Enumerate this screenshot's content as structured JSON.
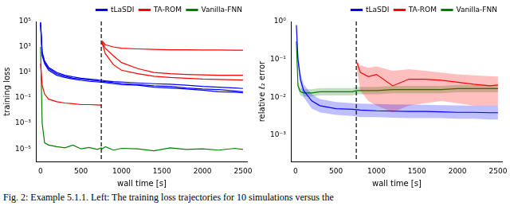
{
  "chart_data": [
    {
      "type": "line",
      "log": "y",
      "grid": false,
      "legend": "upper right",
      "x_label": "wall time [s]",
      "y_label": "training loss",
      "x": [
        0,
        20,
        50,
        100,
        200,
        300,
        400,
        500,
        600,
        700,
        750,
        760,
        800,
        900,
        1000,
        1200,
        1400,
        1600,
        1800,
        2000,
        2200,
        2400,
        2500
      ],
      "xlim": [
        -50,
        2550
      ],
      "xticks": [
        0,
        500,
        1000,
        1500,
        2000,
        2500
      ],
      "ylim": [
        1e-06,
        100000.0
      ],
      "yticks": [
        {
          "value": 1e-05,
          "label": "10⁻⁵"
        },
        {
          "value": 0.001,
          "label": "10⁻³"
        },
        {
          "value": 0.1,
          "label": "10⁻¹"
        },
        {
          "value": 10,
          "label": "10¹"
        },
        {
          "value": 1000,
          "label": "10³"
        },
        {
          "value": 100000.0,
          "label": "10⁵"
        }
      ],
      "vline": 750,
      "series": [
        {
          "name": "tLaSDI",
          "color": "#0000ff",
          "values": [
            80000.0,
            300,
            60,
            20,
            8,
            5,
            3.5,
            3,
            2.5,
            2.2,
            2,
            2,
            1.9,
            1.6,
            1.4,
            1.1,
            0.9,
            0.8,
            0.6,
            0.5,
            0.45,
            0.35,
            0.3
          ]
        },
        {
          "color": "#0000ff",
          "values": [
            60000.0,
            200,
            50,
            15,
            6,
            4,
            3,
            2.4,
            2,
            1.8,
            1.7,
            1.7,
            1.6,
            1.3,
            1.1,
            1.0,
            0.7,
            0.6,
            0.5,
            0.4,
            0.3,
            0.28,
            0.25
          ]
        },
        {
          "color": "#0000ff",
          "values": [
            90000.0,
            400,
            80,
            25,
            10,
            6,
            4.5,
            3.5,
            3,
            2.6,
            2.4,
            2.4,
            2.2,
            1.9,
            1.8,
            1.5,
            1.3,
            1.2,
            1.0,
            0.8,
            0.7,
            0.6,
            0.55
          ]
        },
        {
          "name": "TA-ROM",
          "color": "#ff0000",
          "values": [
            50,
            1,
            0.2,
            0.08,
            0.05,
            0.04,
            0.035,
            0.03,
            0.03,
            0.028,
            0.027,
            null,
            null,
            null,
            null,
            null,
            null,
            null,
            null,
            null,
            null,
            null,
            null
          ]
        },
        {
          "color": "#ff0000",
          "values": [
            null,
            null,
            null,
            null,
            null,
            null,
            null,
            null,
            null,
            null,
            null,
            3000,
            1500,
            1000,
            800,
            700,
            650,
            600,
            600,
            580,
            570,
            560,
            550
          ]
        },
        {
          "color": "#ff0000",
          "values": [
            null,
            null,
            null,
            null,
            null,
            null,
            null,
            null,
            null,
            null,
            null,
            2500,
            800,
            200,
            60,
            20,
            10,
            8,
            7,
            6.5,
            6,
            6,
            6
          ]
        },
        {
          "color": "#ff0000",
          "values": [
            null,
            null,
            null,
            null,
            null,
            null,
            null,
            null,
            null,
            null,
            null,
            2000,
            300,
            40,
            15,
            8,
            5,
            4,
            3.5,
            3,
            2.8,
            2.6,
            2.5
          ]
        },
        {
          "name": "Vanilla-FNN",
          "color": "#008000",
          "values": [
            1000,
            0.001,
            3e-05,
            2e-05,
            1.5e-05,
            1.2e-05,
            2e-05,
            1e-05,
            1.3e-05,
            9e-06,
            1.2e-05,
            1e-05,
            1.5e-05,
            8e-06,
            1.1e-05,
            1e-05,
            7e-06,
            1.2e-05,
            9e-06,
            1e-05,
            8e-06,
            1.1e-05,
            9e-06
          ]
        }
      ]
    },
    {
      "type": "line",
      "log": "y",
      "grid": false,
      "legend": "upper right",
      "x_label": "wall time [s]",
      "y_label": "relative ℓ₂ error",
      "x": [
        10,
        30,
        60,
        100,
        200,
        300,
        500,
        700,
        750,
        760,
        800,
        900,
        1000,
        1200,
        1400,
        1600,
        1800,
        2000,
        2200,
        2400,
        2500
      ],
      "xlim": [
        -50,
        2550
      ],
      "xticks": [
        0,
        500,
        1000,
        1500,
        2000,
        2500
      ],
      "ylim": [
        0.0002,
        1
      ],
      "yticks": [
        {
          "value": 0.001,
          "label": "10⁻³"
        },
        {
          "value": 0.01,
          "label": "10⁻²"
        },
        {
          "value": 0.1,
          "label": "10⁻¹"
        },
        {
          "value": 1,
          "label": "10⁰"
        }
      ],
      "vline": 750,
      "series": [
        {
          "name": "tLaSDI",
          "color": "#0000ff",
          "values": [
            0.8,
            0.1,
            0.03,
            0.015,
            0.008,
            0.006,
            0.005,
            0.0048,
            0.0047,
            0.0047,
            0.0046,
            0.0045,
            0.0044,
            0.0043,
            0.0042,
            0.0042,
            0.0041,
            0.004,
            0.004,
            0.0039,
            0.0039
          ],
          "lower": [
            0.6,
            0.07,
            0.02,
            0.01,
            0.005,
            0.004,
            0.0034,
            0.0032,
            0.0031,
            0.0031,
            0.003,
            0.003,
            0.003,
            0.0029,
            0.0028,
            0.0028,
            0.0028,
            0.0027,
            0.0027,
            0.0026,
            0.0026
          ],
          "upper": [
            1.0,
            0.15,
            0.045,
            0.022,
            0.012,
            0.009,
            0.0075,
            0.007,
            0.0069,
            0.0069,
            0.0068,
            0.0067,
            0.0066,
            0.0065,
            0.0064,
            0.0063,
            0.0062,
            0.0061,
            0.006,
            0.006,
            0.006
          ]
        },
        {
          "name": "TA-ROM",
          "color": "#ff0000",
          "values": [
            null,
            null,
            null,
            null,
            null,
            null,
            null,
            null,
            null,
            0.08,
            0.045,
            0.035,
            0.04,
            0.02,
            0.03,
            0.03,
            0.028,
            0.025,
            0.022,
            0.02,
            0.021
          ],
          "lower": [
            null,
            null,
            null,
            null,
            null,
            null,
            null,
            null,
            null,
            0.05,
            0.015,
            0.008,
            0.006,
            0.004,
            0.006,
            0.007,
            0.008,
            0.007,
            0.006,
            0.006,
            0.006
          ],
          "upper": [
            null,
            null,
            null,
            null,
            null,
            null,
            null,
            null,
            null,
            0.09,
            0.07,
            0.06,
            0.065,
            0.05,
            0.055,
            0.05,
            0.045,
            0.04,
            0.038,
            0.036,
            0.035
          ]
        },
        {
          "name": "Vanilla-FNN",
          "color": "#008000",
          "values": [
            0.3,
            0.02,
            0.014,
            0.013,
            0.013,
            0.014,
            0.014,
            0.014,
            0.015,
            0.015,
            0.015,
            0.015,
            0.015,
            0.016,
            0.016,
            0.016,
            0.016,
            0.017,
            0.017,
            0.017,
            0.017
          ],
          "lower": [
            0.24,
            0.016,
            0.011,
            0.0104,
            0.0104,
            0.0112,
            0.0112,
            0.0112,
            0.012,
            0.012,
            0.012,
            0.012,
            0.012,
            0.0128,
            0.0128,
            0.0128,
            0.0128,
            0.0136,
            0.0136,
            0.0136,
            0.0136
          ],
          "upper": [
            0.375,
            0.025,
            0.0175,
            0.0163,
            0.0163,
            0.0175,
            0.0175,
            0.0175,
            0.0188,
            0.0188,
            0.0188,
            0.0188,
            0.0188,
            0.02,
            0.02,
            0.02,
            0.02,
            0.0213,
            0.0213,
            0.0213,
            0.0213
          ]
        }
      ]
    }
  ],
  "caption": "Fig. 2: Example 5.1.1. Left: The training loss trajectories for 10 simulations versus the"
}
